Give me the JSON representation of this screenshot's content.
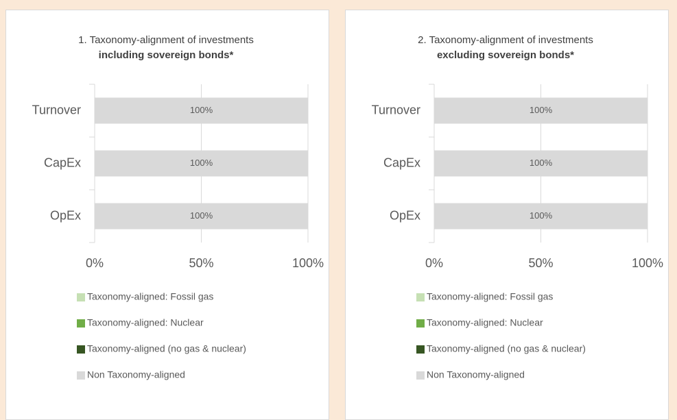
{
  "chart_data": [
    {
      "type": "bar",
      "orientation": "horizontal",
      "stacked": true,
      "title": "1. Taxonomy-alignment of investments",
      "subtitle": "including sovereign bonds*",
      "categories": [
        "Turnover",
        "CapEx",
        "OpEx"
      ],
      "series": [
        {
          "name": "Taxonomy-aligned: Fossil gas",
          "color": "#c6e0b4",
          "values": [
            0,
            0,
            0
          ]
        },
        {
          "name": "Taxonomy-aligned: Nuclear",
          "color": "#70ad47",
          "values": [
            0,
            0,
            0
          ]
        },
        {
          "name": "Taxonomy-aligned (no gas & nuclear)",
          "color": "#375623",
          "values": [
            0,
            0,
            0
          ]
        },
        {
          "name": "Non Taxonomy-aligned",
          "color": "#d9d9d9",
          "values": [
            100,
            100,
            100
          ],
          "value_labels": [
            "100%",
            "100%",
            "100%"
          ]
        }
      ],
      "xlim": [
        0,
        100
      ],
      "xticks": [
        {
          "value": 0,
          "label": "0%"
        },
        {
          "value": 50,
          "label": "50%"
        },
        {
          "value": 100,
          "label": "100%"
        }
      ],
      "grid": true,
      "legend": "bottom"
    },
    {
      "type": "bar",
      "orientation": "horizontal",
      "stacked": true,
      "title": "2. Taxonomy-alignment of investments",
      "subtitle": "excluding sovereign bonds*",
      "categories": [
        "Turnover",
        "CapEx",
        "OpEx"
      ],
      "series": [
        {
          "name": "Taxonomy-aligned: Fossil gas",
          "color": "#c6e0b4",
          "values": [
            0,
            0,
            0
          ]
        },
        {
          "name": "Taxonomy-aligned: Nuclear",
          "color": "#70ad47",
          "values": [
            0,
            0,
            0
          ]
        },
        {
          "name": "Taxonomy-aligned (no gas & nuclear)",
          "color": "#375623",
          "values": [
            0,
            0,
            0
          ]
        },
        {
          "name": "Non Taxonomy-aligned",
          "color": "#d9d9d9",
          "values": [
            100,
            100,
            100
          ],
          "value_labels": [
            "100%",
            "100%",
            "100%"
          ]
        }
      ],
      "xlim": [
        0,
        100
      ],
      "xticks": [
        {
          "value": 0,
          "label": "0%"
        },
        {
          "value": 50,
          "label": "50%"
        },
        {
          "value": 100,
          "label": "100%"
        }
      ],
      "grid": true,
      "legend": "bottom"
    }
  ]
}
